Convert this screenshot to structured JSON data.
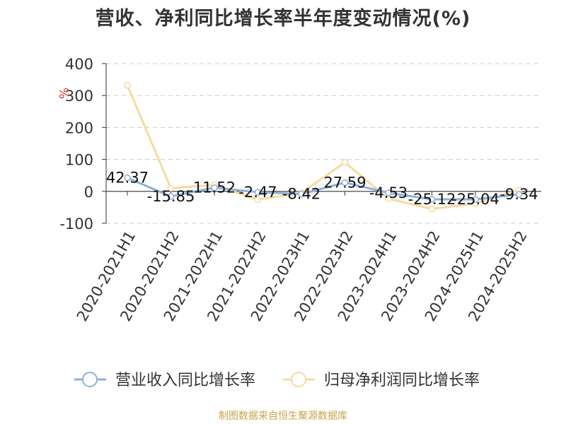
{
  "colors": {
    "revenue": "#8fb0d8",
    "profit": "#f8d9a0",
    "axis": "#333333",
    "grid": "#cccccc",
    "unit": "#d23a3a",
    "source": "#c9a24b"
  },
  "chart_data": {
    "type": "line",
    "title": "营收、净利同比增长率半年度变动情况(%)",
    "ylabel": "%",
    "ylim": [
      -100,
      400
    ],
    "yticks": [
      400,
      300,
      200,
      100,
      0,
      -100
    ],
    "grid": true,
    "legend_position": "bottom",
    "categories": [
      "2020-2021H1",
      "2020-2021H2",
      "2021-2022H1",
      "2021-2022H2",
      "2022-2023H1",
      "2022-2023H2",
      "2023-2024H1",
      "2023-2024H2",
      "2024-2025H1",
      "2024-2025H2"
    ],
    "series": [
      {
        "name": "营业收入同比增长率",
        "values": [
          42.37,
          -15.85,
          11.52,
          -2.47,
          -8.42,
          27.59,
          -4.53,
          -25.12,
          -25.04,
          -9.34
        ]
      },
      {
        "name": "归母净利润同比增长率",
        "values": [
          332,
          10,
          20,
          -26,
          -5,
          91,
          -23,
          -55,
          -38,
          5
        ]
      }
    ],
    "data_labels": [
      "42.37",
      "-15.85",
      "11.52",
      "-2.47",
      "-8.42",
      "27.59",
      "-4.53",
      "-25.12",
      "-25.04",
      "-9.34"
    ]
  },
  "source_text": "制图数据来自恒生聚源数据库"
}
